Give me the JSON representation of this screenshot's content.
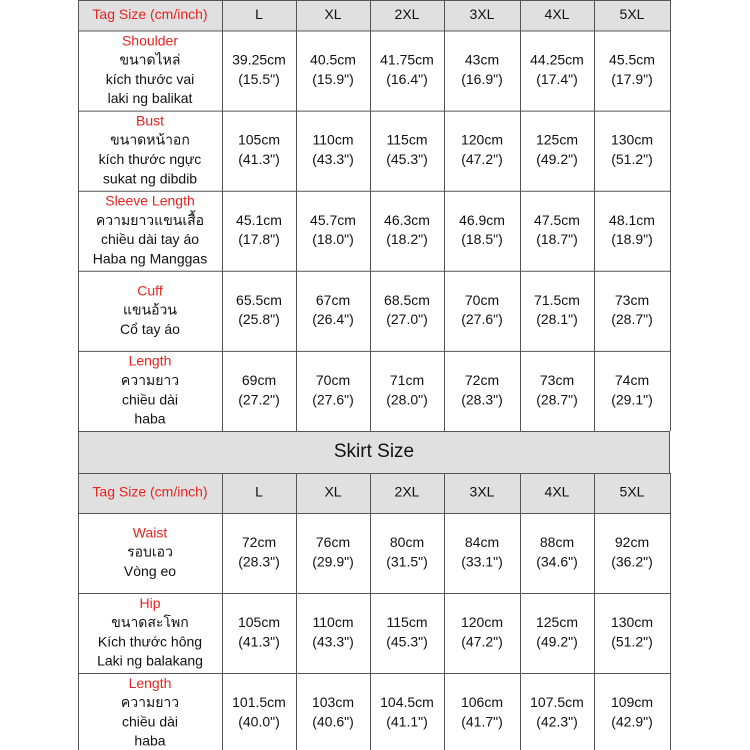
{
  "top_table": {
    "header": [
      "Tag Size (cm/inch)",
      "L",
      "XL",
      "2XL",
      "3XL",
      "4XL",
      "5XL"
    ],
    "rows": [
      {
        "label": [
          "Shoulder",
          "ขนาดไหล่",
          "kích thước vai",
          "laki ng balikat"
        ],
        "cells": [
          [
            "39.25cm",
            "(15.5\")"
          ],
          [
            "40.5cm",
            "(15.9\")"
          ],
          [
            "41.75cm",
            "(16.4\")"
          ],
          [
            "43cm",
            "(16.9\")"
          ],
          [
            "44.25cm",
            "(17.4\")"
          ],
          [
            "45.5cm",
            "(17.9\")"
          ]
        ]
      },
      {
        "label": [
          "Bust",
          "ขนาดหน้าอก",
          "kích thước ngực",
          "sukat ng dibdib"
        ],
        "cells": [
          [
            "105cm",
            "(41.3\")"
          ],
          [
            "110cm",
            "(43.3\")"
          ],
          [
            "115cm",
            "(45.3\")"
          ],
          [
            "120cm",
            "(47.2\")"
          ],
          [
            "125cm",
            "(49.2\")"
          ],
          [
            "130cm",
            "(51.2\")"
          ]
        ]
      },
      {
        "label": [
          "Sleeve Length",
          "ความยาวแขนเสื้อ",
          "chiều dài tay áo",
          "Haba ng Manggas"
        ],
        "cells": [
          [
            "45.1cm",
            "(17.8\")"
          ],
          [
            "45.7cm",
            "(18.0\")"
          ],
          [
            "46.3cm",
            "(18.2\")"
          ],
          [
            "46.9cm",
            "(18.5\")"
          ],
          [
            "47.5cm",
            "(18.7\")"
          ],
          [
            "48.1cm",
            "(18.9\")"
          ]
        ]
      },
      {
        "label": [
          "Cuff",
          "แขนอ้วน",
          "Cổ tay áo"
        ],
        "cells": [
          [
            "65.5cm",
            "(25.8\")"
          ],
          [
            "67cm",
            "(26.4\")"
          ],
          [
            "68.5cm",
            "(27.0\")"
          ],
          [
            "70cm",
            "(27.6\")"
          ],
          [
            "71.5cm",
            "(28.1\")"
          ],
          [
            "73cm",
            "(28.7\")"
          ]
        ]
      },
      {
        "label": [
          "Length",
          "ความยาว",
          "chiều dài",
          "haba"
        ],
        "cells": [
          [
            "69cm",
            "(27.2\")"
          ],
          [
            "70cm",
            "(27.6\")"
          ],
          [
            "71cm",
            "(28.0\")"
          ],
          [
            "72cm",
            "(28.3\")"
          ],
          [
            "73cm",
            "(28.7\")"
          ],
          [
            "74cm",
            "(29.1\")"
          ]
        ]
      }
    ]
  },
  "section_title": "Skirt  Size",
  "bottom_table": {
    "header": [
      "Tag Size (cm/inch)",
      "L",
      "XL",
      "2XL",
      "3XL",
      "4XL",
      "5XL"
    ],
    "rows": [
      {
        "label": [
          "Waist",
          "รอบเอว",
          "Vòng eo"
        ],
        "cells": [
          [
            "72cm",
            "(28.3\")"
          ],
          [
            "76cm",
            "(29.9\")"
          ],
          [
            "80cm",
            "(31.5\")"
          ],
          [
            "84cm",
            "(33.1\")"
          ],
          [
            "88cm",
            "(34.6\")"
          ],
          [
            "92cm",
            "(36.2\")"
          ]
        ]
      },
      {
        "label": [
          "Hip",
          "ขนาดสะโพก",
          "Kích thước hông",
          "Laki ng balakang"
        ],
        "cells": [
          [
            "105cm",
            "(41.3\")"
          ],
          [
            "110cm",
            "(43.3\")"
          ],
          [
            "115cm",
            "(45.3\")"
          ],
          [
            "120cm",
            "(47.2\")"
          ],
          [
            "125cm",
            "(49.2\")"
          ],
          [
            "130cm",
            "(51.2\")"
          ]
        ]
      },
      {
        "label": [
          "Length",
          "ความยาว",
          "chiều dài",
          "haba"
        ],
        "cells": [
          [
            "101.5cm",
            "(40.0\")"
          ],
          [
            "103cm",
            "(40.6\")"
          ],
          [
            "104.5cm",
            "(41.1\")"
          ],
          [
            "106cm",
            "(41.7\")"
          ],
          [
            "107.5cm",
            "(42.3\")"
          ],
          [
            "109cm",
            "(42.9\")"
          ]
        ]
      }
    ]
  }
}
